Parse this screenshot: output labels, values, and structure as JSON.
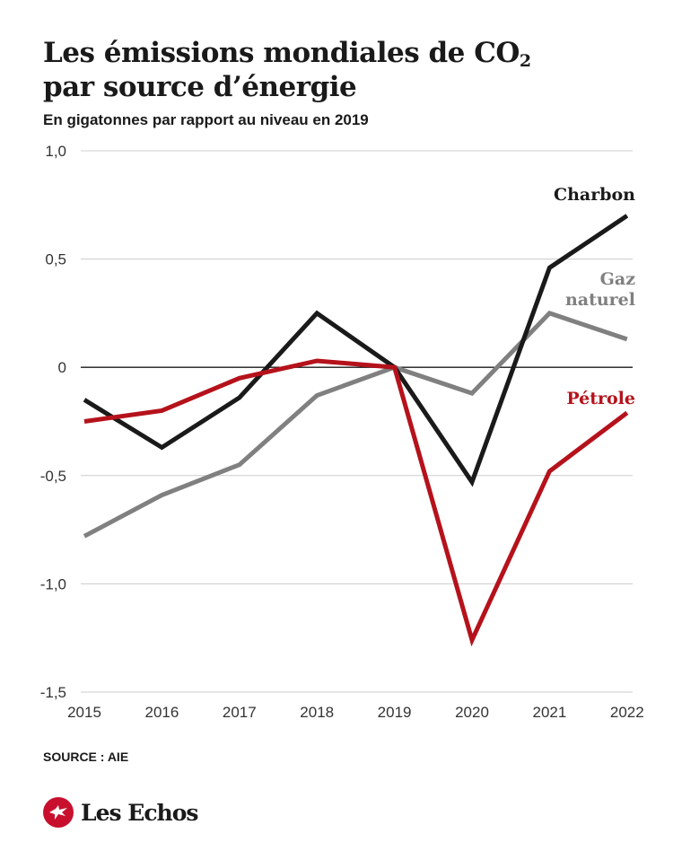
{
  "header": {
    "title_line1": "Les émissions mondiales de CO",
    "title_sub": "2",
    "title_line2": "par source d’énergie",
    "subtitle": "En gigatonnes par rapport au niveau en 2019"
  },
  "chart_data": {
    "type": "line",
    "title": "Les émissions mondiales de CO2 par source d’énergie",
    "subtitle": "En gigatonnes par rapport au niveau en 2019",
    "categories": [
      "2015",
      "2016",
      "2017",
      "2018",
      "2019",
      "2020",
      "2021",
      "2022"
    ],
    "ylim": [
      -1.5,
      1.0
    ],
    "yticks": [
      1.0,
      0.5,
      0,
      -0.5,
      -1.0,
      -1.5
    ],
    "ytick_labels": [
      "1,0",
      "0,5",
      "0",
      "-0,5",
      "-1,0",
      "-1,5"
    ],
    "grid": true,
    "series": [
      {
        "name": "Charbon",
        "color": "#1a1a1a",
        "values": [
          -0.15,
          -0.37,
          -0.14,
          0.25,
          0.0,
          -0.53,
          0.46,
          0.7
        ]
      },
      {
        "name": "Gaz naturel",
        "color": "#808080",
        "values": [
          -0.78,
          -0.59,
          -0.45,
          -0.13,
          0.0,
          -0.12,
          0.25,
          0.13
        ]
      },
      {
        "name": "Pétrole",
        "color": "#b5121b",
        "values": [
          -0.25,
          -0.2,
          -0.05,
          0.03,
          0.0,
          -1.26,
          -0.48,
          -0.21
        ]
      }
    ],
    "labels": {
      "Charbon": [
        "Charbon"
      ],
      "Gaz naturel": [
        "Gaz",
        "naturel"
      ],
      "Pétrole": [
        "Pétrole"
      ]
    }
  },
  "footer": {
    "source": "SOURCE : AIE",
    "logo_text": "Les Echos",
    "logo_icon": "eagle-icon"
  }
}
